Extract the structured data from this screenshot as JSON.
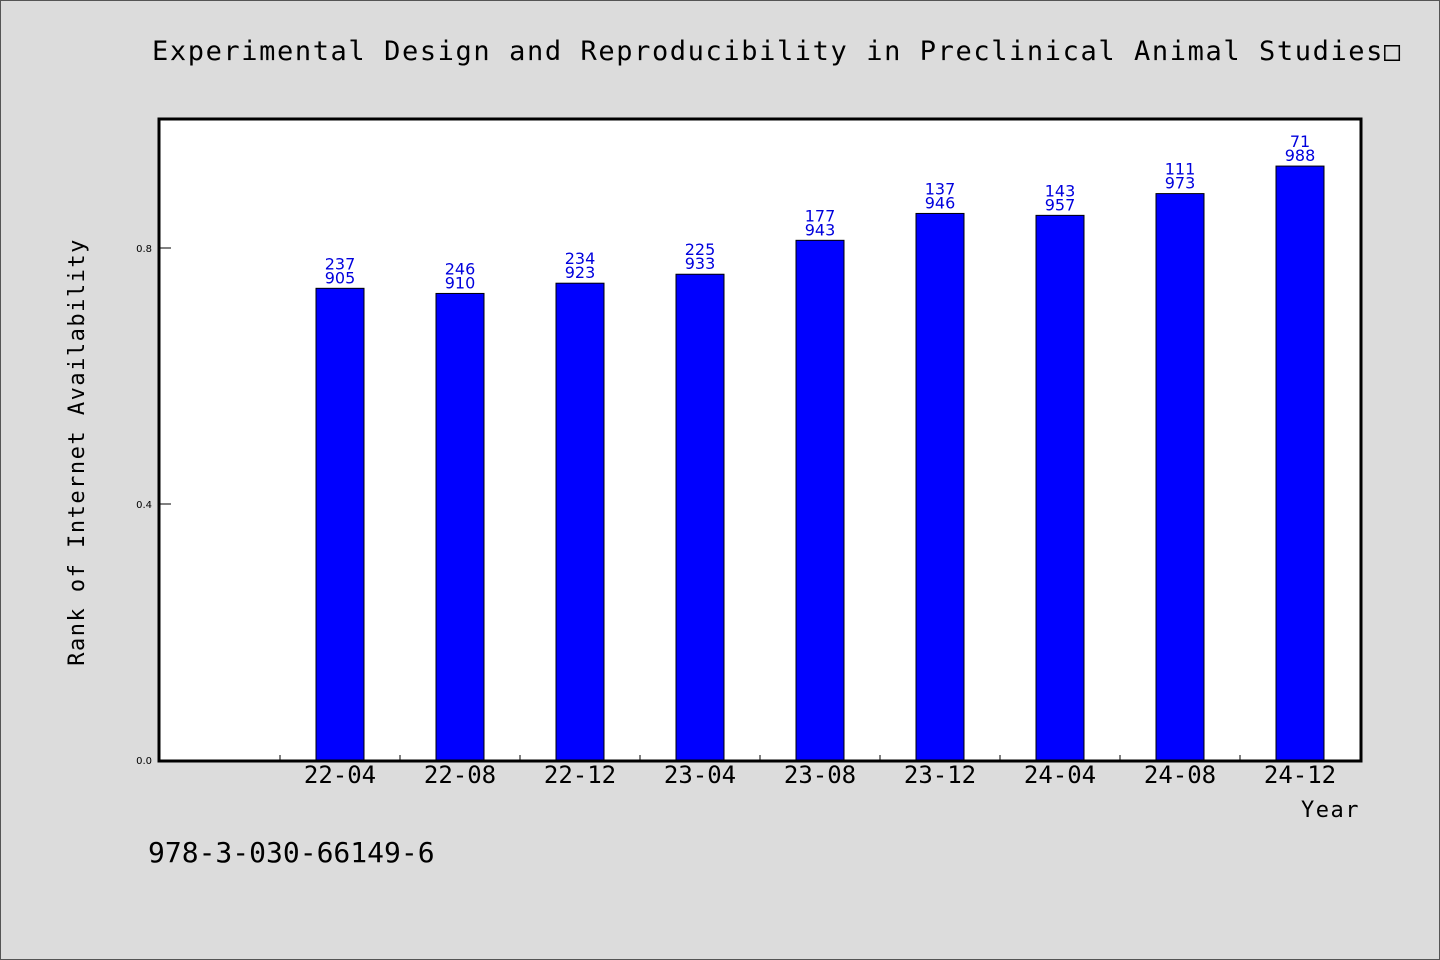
{
  "title": "Experimental Design and Reproducibility in Preclinical Animal Studies□",
  "footer_text": "978-3-030-66149-6",
  "colors": {
    "background": "#dcdcdc",
    "bar": "#0000ff",
    "bar_label": "#0000dd",
    "plot_bg": "#ffffff"
  },
  "chart_data": {
    "type": "bar",
    "title": "Experimental Design and Reproducibility in Preclinical Animal Studies□",
    "xlabel": "Year",
    "ylabel": "Rank of Internet Availability",
    "ylim": [
      0,
      1.004
    ],
    "yticks": [
      0.0,
      0.4,
      0.8
    ],
    "ytick_labels": [
      "0.0",
      "0.4",
      "0.8"
    ],
    "grid": false,
    "categories": [
      "22-04",
      "22-08",
      "22-12",
      "23-04",
      "23-08",
      "23-12",
      "24-04",
      "24-08",
      "24-12"
    ],
    "values": [
      0.737,
      0.729,
      0.745,
      0.759,
      0.812,
      0.854,
      0.851,
      0.885,
      0.928
    ],
    "labels_top": [
      "237",
      "246",
      "234",
      "225",
      "177",
      "137",
      "143",
      "111",
      "71"
    ],
    "labels_bottom": [
      "905",
      "910",
      "923",
      "933",
      "943",
      "946",
      "957",
      "973",
      "988"
    ]
  }
}
